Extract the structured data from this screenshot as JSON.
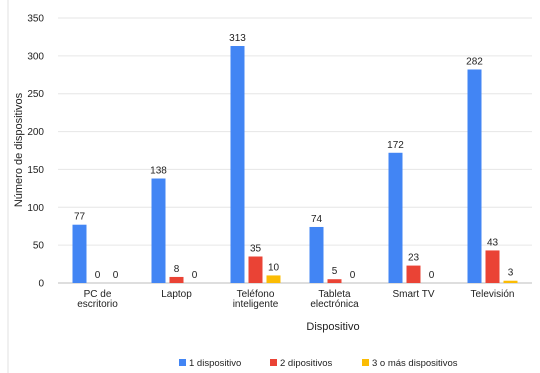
{
  "chart_data": {
    "type": "bar",
    "xlabel": "Dispositivo",
    "ylabel": "Número de dispositivos",
    "ylim": [
      0,
      350
    ],
    "yticks": [
      0,
      50,
      100,
      150,
      200,
      250,
      300,
      350
    ],
    "grid": true,
    "legend_position": "bottom",
    "categories": [
      [
        "PC de",
        "escritorio"
      ],
      [
        "Laptop"
      ],
      [
        "Teléfono",
        "inteligente"
      ],
      [
        "Tableta",
        "electrónica"
      ],
      [
        "Smart TV"
      ],
      [
        "Televisión"
      ]
    ],
    "series": [
      {
        "name": "1 dispositivo",
        "color": "#4285f4",
        "values": [
          77,
          138,
          313,
          74,
          172,
          282
        ]
      },
      {
        "name": "2 dipositivos",
        "color": "#ea4335",
        "values": [
          0,
          8,
          35,
          5,
          23,
          43
        ]
      },
      {
        "name": "3 o más dispositivos",
        "color": "#fbbc04",
        "values": [
          0,
          0,
          10,
          0,
          0,
          3
        ]
      }
    ]
  }
}
